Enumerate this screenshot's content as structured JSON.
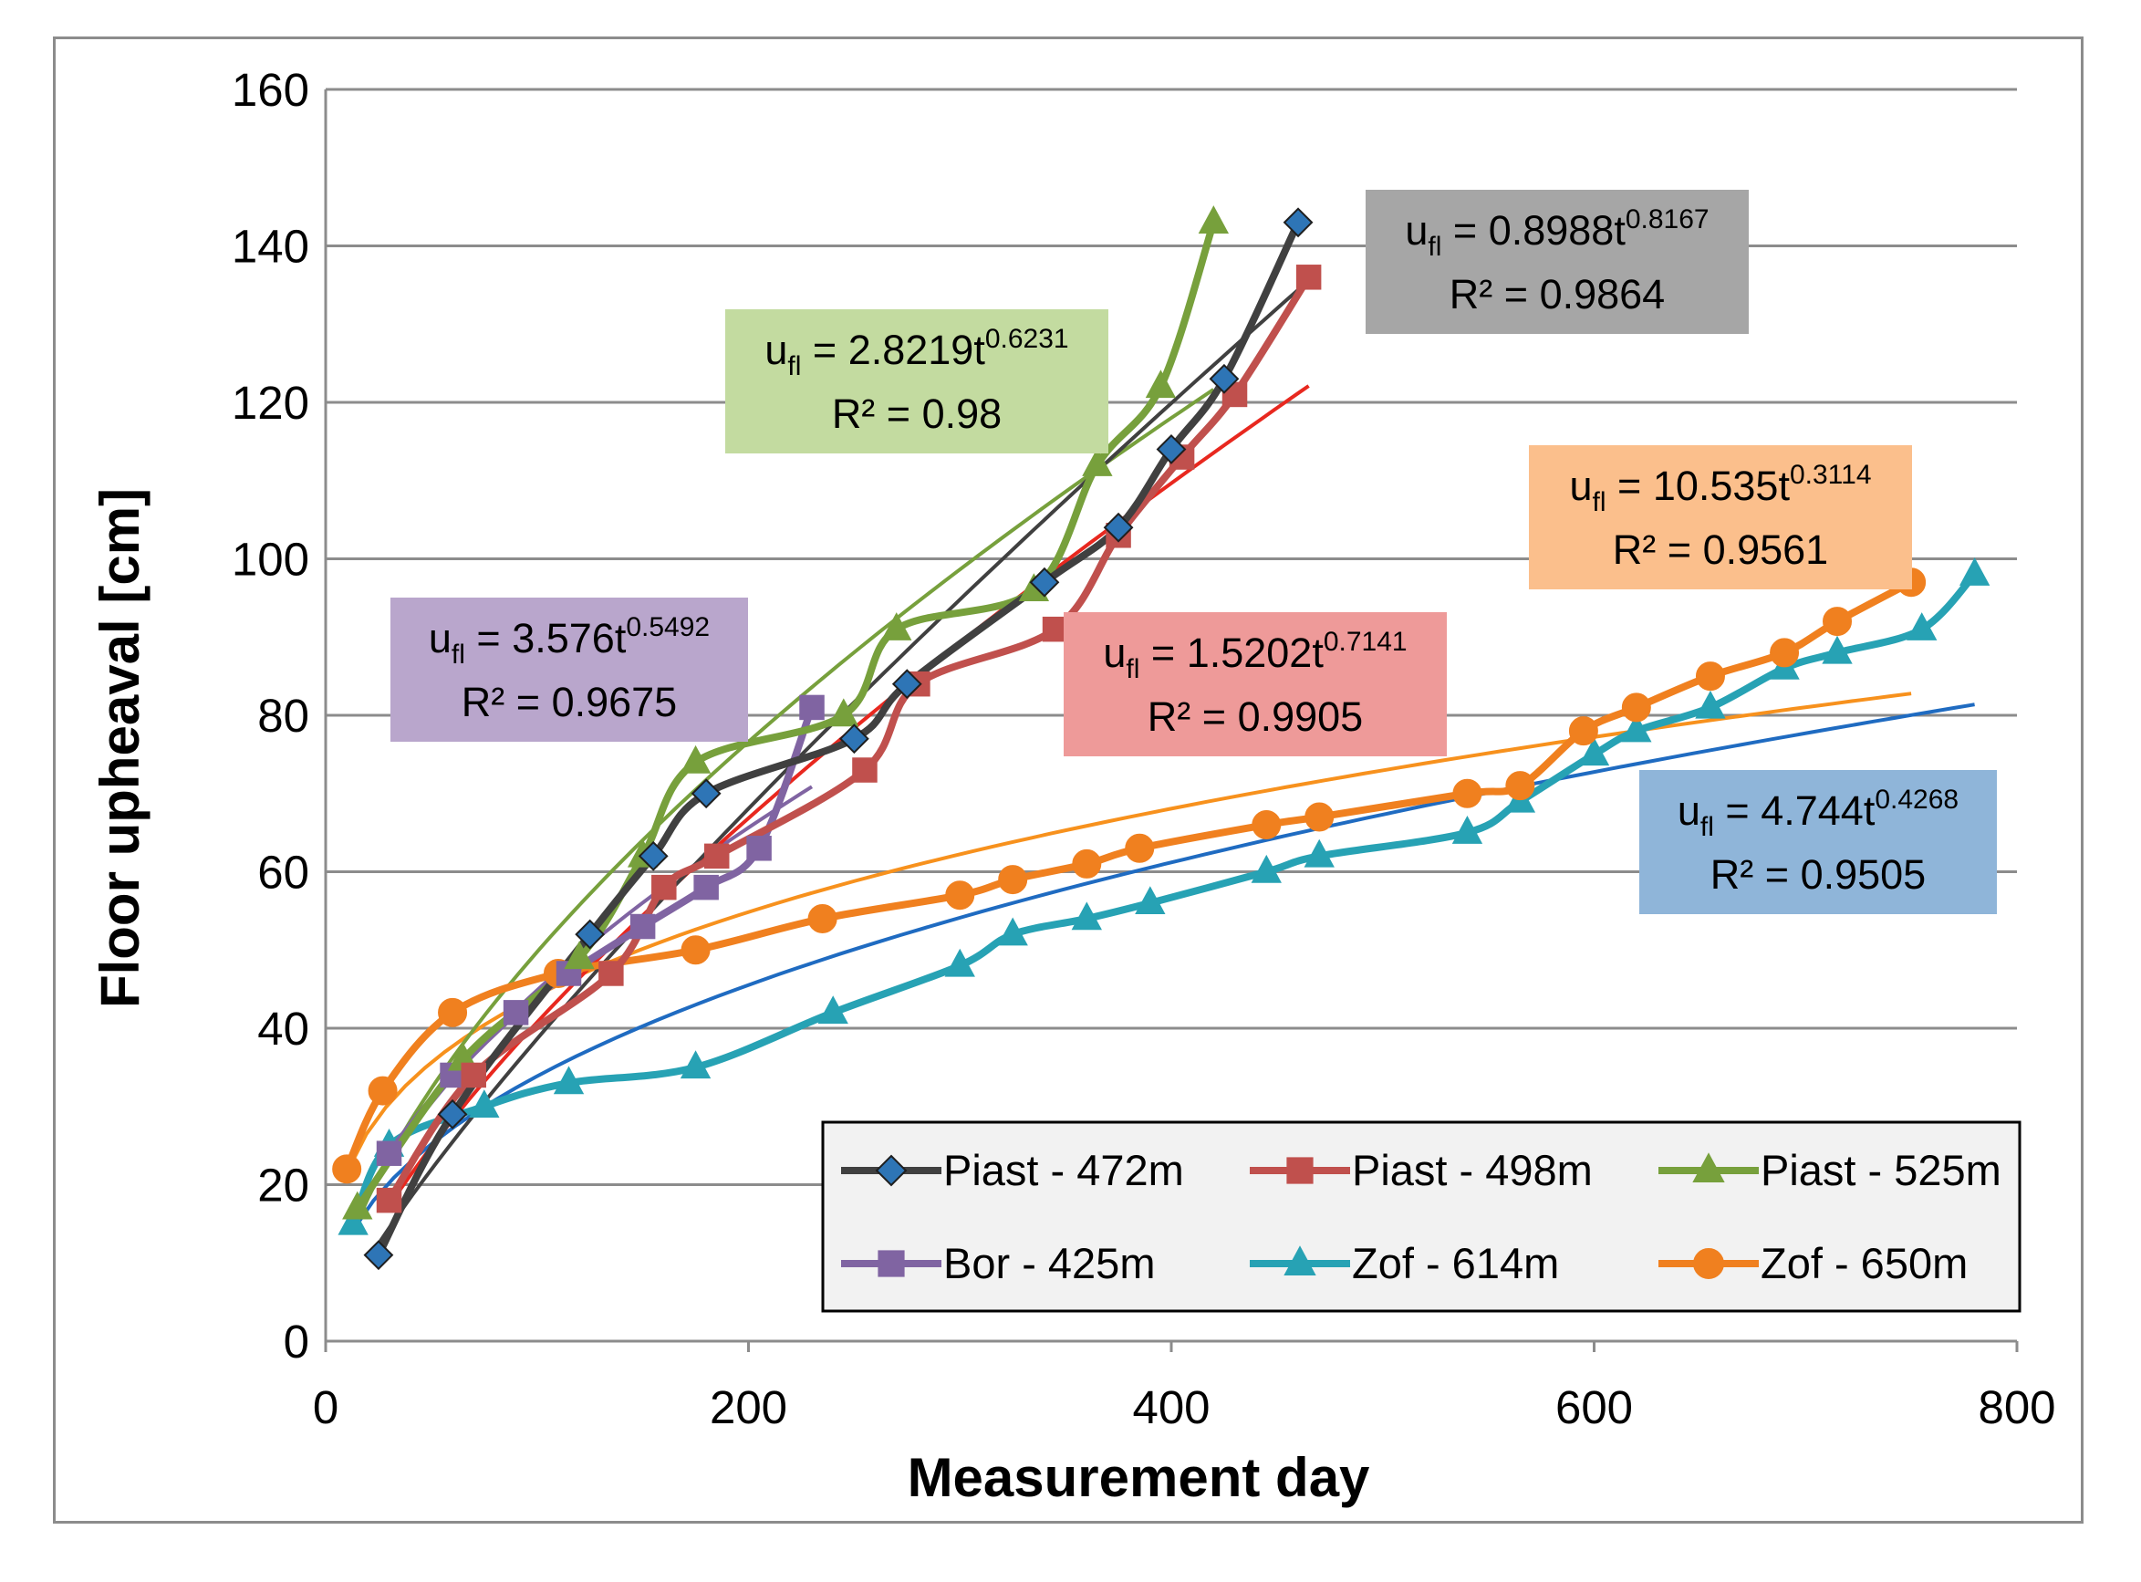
{
  "chart_data": {
    "type": "line",
    "title": "",
    "xlabel": "Measurement day",
    "ylabel": "Floor upheaval [cm]",
    "xlim": [
      0,
      800
    ],
    "ylim": [
      0,
      160
    ],
    "xticks": [
      "0",
      "200",
      "400",
      "600",
      "800"
    ],
    "yticks": [
      "0",
      "20",
      "40",
      "60",
      "80",
      "100",
      "120",
      "140",
      "160"
    ],
    "grid": "horizontal",
    "legend_position": "bottom-right",
    "series": [
      {
        "name": "Piast - 472m",
        "color": "#404040",
        "marker": "diamond",
        "marker_fill": "#2e75b6",
        "x": [
          25,
          60,
          125,
          155,
          180,
          250,
          275,
          340,
          375,
          400,
          425,
          460
        ],
        "y": [
          11,
          29,
          52,
          62,
          70,
          77,
          84,
          97,
          104,
          114,
          123,
          143
        ],
        "fit": {
          "a": 0.8988,
          "b": 0.8167,
          "r2": 0.9864,
          "color": "#404040",
          "x_range": [
            25,
            460
          ]
        }
      },
      {
        "name": "Piast - 498m",
        "color": "#c0504d",
        "marker": "square",
        "marker_fill": "#c0504d",
        "x": [
          30,
          70,
          135,
          160,
          185,
          255,
          280,
          345,
          375,
          405,
          430,
          465
        ],
        "y": [
          18,
          34,
          47,
          58,
          62,
          73,
          84,
          91,
          103,
          113,
          121,
          136
        ],
        "fit": {
          "a": 1.5202,
          "b": 0.7141,
          "r2": 0.9905,
          "color": "#e8281f",
          "x_range": [
            30,
            465
          ]
        }
      },
      {
        "name": "Piast - 525m",
        "color": "#77a03c",
        "marker": "triangle",
        "marker_fill": "#77a03c",
        "x": [
          15,
          65,
          120,
          150,
          175,
          245,
          270,
          335,
          365,
          395,
          420
        ],
        "y": [
          17,
          36,
          49,
          62,
          74,
          80,
          91,
          96,
          112,
          122,
          143
        ],
        "fit": {
          "a": 2.8219,
          "b": 0.6231,
          "r2": 0.98,
          "color": "#77a03c",
          "x_range": [
            15,
            420
          ]
        }
      },
      {
        "name": "Bor - 425m",
        "color": "#8064a2",
        "marker": "square",
        "marker_fill": "#8064a2",
        "x": [
          30,
          60,
          90,
          115,
          150,
          180,
          205,
          230
        ],
        "y": [
          24,
          34,
          42,
          47,
          53,
          58,
          63,
          81
        ],
        "fit": {
          "a": 3.576,
          "b": 0.5492,
          "r2": 0.9675,
          "color": "#8064a2",
          "x_range": [
            30,
            230
          ]
        }
      },
      {
        "name": "Zof - 614m",
        "color": "#27a2b4",
        "marker": "triangle",
        "marker_fill": "#27a2b4",
        "x": [
          13,
          30,
          75,
          115,
          175,
          240,
          300,
          325,
          360,
          390,
          445,
          470,
          540,
          565,
          600,
          620,
          655,
          690,
          715,
          755,
          780
        ],
        "y": [
          15,
          25,
          30,
          33,
          35,
          42,
          48,
          52,
          54,
          56,
          60,
          62,
          65,
          69,
          75,
          78,
          81,
          86,
          88,
          91,
          98
        ],
        "fit": {
          "a": 4.744,
          "b": 0.4268,
          "r2": 0.9505,
          "color": "#1f6bc1",
          "x_range": [
            13,
            780
          ]
        }
      },
      {
        "name": "Zof - 650m",
        "color": "#f0801f",
        "marker": "circle",
        "marker_fill": "#f0801f",
        "x": [
          10,
          27,
          60,
          110,
          175,
          235,
          300,
          325,
          360,
          385,
          445,
          470,
          540,
          565,
          595,
          620,
          655,
          690,
          715,
          750
        ],
        "y": [
          22,
          32,
          42,
          47,
          50,
          54,
          57,
          59,
          61,
          63,
          66,
          67,
          70,
          71,
          78,
          81,
          85,
          88,
          92,
          97
        ],
        "fit": {
          "a": 10.535,
          "b": 0.3114,
          "r2": 0.9561,
          "color": "#f7911d",
          "x_range": [
            10,
            750
          ]
        }
      }
    ],
    "annotations": [
      {
        "lead": "u",
        "sub": "fl",
        "mid": " = 0.8988t",
        "sup": "0.8167",
        "r2": "R² = 0.9864",
        "bg": "#a6a6a6",
        "series": "Piast - 472m"
      },
      {
        "lead": "u",
        "sub": "fl",
        "mid": " = 2.8219t",
        "sup": "0.6231",
        "r2": "R² = 0.98",
        "bg": "#c3dba0",
        "series": "Piast - 525m"
      },
      {
        "lead": "u",
        "sub": "fl",
        "mid": " = 3.576t",
        "sup": "0.5492",
        "r2": "R² = 0.9675",
        "bg": "#b9a6cc",
        "series": "Bor - 425m"
      },
      {
        "lead": "u",
        "sub": "fl",
        "mid": " = 1.5202t",
        "sup": "0.7141",
        "r2": "R² = 0.9905",
        "bg": "#ee9a99",
        "series": "Piast - 498m"
      },
      {
        "lead": "u",
        "sub": "fl",
        "mid": " = 10.535t",
        "sup": "0.3114",
        "r2": "R² = 0.9561",
        "bg": "#fbbf8c",
        "series": "Zof - 650m"
      },
      {
        "lead": "u",
        "sub": "fl",
        "mid": " = 4.744t",
        "sup": "0.4268",
        "r2": "R² = 0.9505",
        "bg": "#8fb5d9",
        "series": "Zof - 614m"
      }
    ]
  }
}
